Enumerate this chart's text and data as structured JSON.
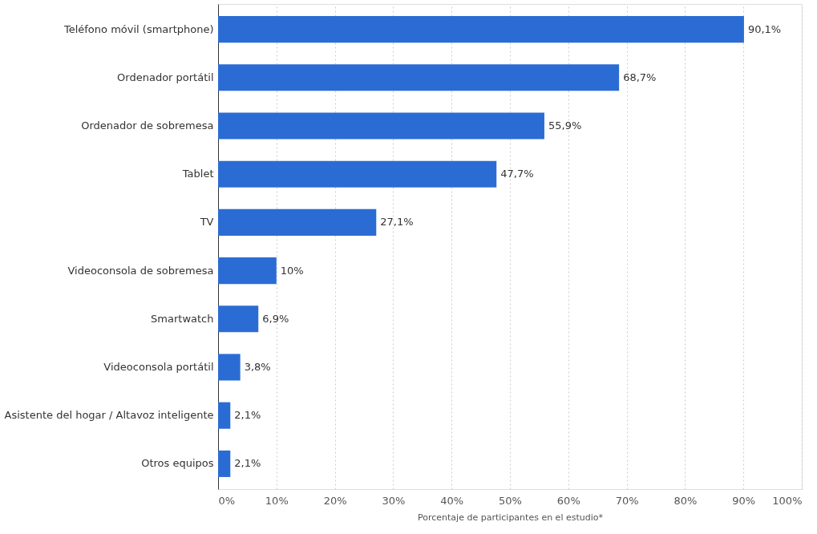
{
  "chart_data": {
    "type": "bar",
    "orientation": "horizontal",
    "categories": [
      "Teléfono móvil (smartphone)",
      "Ordenador portátil",
      "Ordenador de sobremesa",
      "Tablet",
      "TV",
      "Videoconsola de sobremesa",
      "Smartwatch",
      "Videoconsola portátil",
      "Asistente del hogar / Altavoz inteligente",
      "Otros equipos"
    ],
    "values": [
      90.1,
      68.7,
      55.9,
      47.7,
      27.1,
      10,
      6.9,
      3.8,
      2.1,
      2.1
    ],
    "value_labels": [
      "90,1%",
      "68,7%",
      "55,9%",
      "47,7%",
      "27,1%",
      "10%",
      "6,9%",
      "3,8%",
      "2,1%",
      "2,1%"
    ],
    "color": "#2b6cd4",
    "xlabel": "Porcentaje de participantes en el estudio*",
    "xlim": [
      0,
      100
    ],
    "xticks": [
      {
        "value": 0,
        "label": "0%"
      },
      {
        "value": 10,
        "label": "10%"
      },
      {
        "value": 20,
        "label": "20%"
      },
      {
        "value": 30,
        "label": "30%"
      },
      {
        "value": 40,
        "label": "40%"
      },
      {
        "value": 50,
        "label": "50%"
      },
      {
        "value": 60,
        "label": "60%"
      },
      {
        "value": 70,
        "label": "70%"
      },
      {
        "value": 80,
        "label": "80%"
      },
      {
        "value": 90,
        "label": "90%"
      },
      {
        "value": 100,
        "label": "100%"
      }
    ],
    "grid": "x"
  }
}
